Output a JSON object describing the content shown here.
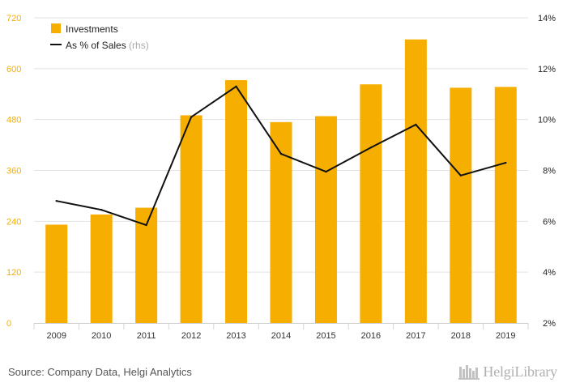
{
  "chart_data": {
    "type": "bar",
    "categories": [
      "2009",
      "2010",
      "2011",
      "2012",
      "2013",
      "2014",
      "2015",
      "2016",
      "2017",
      "2018",
      "2019"
    ],
    "series": [
      {
        "name": "Investments",
        "type": "bar",
        "axis": "left",
        "values": [
          232,
          256,
          272,
          490,
          573,
          474,
          488,
          563,
          669,
          555,
          557
        ]
      },
      {
        "name": "As % of Sales",
        "type": "line",
        "axis": "right",
        "values": [
          6.8,
          6.45,
          5.85,
          10.1,
          11.3,
          8.65,
          7.95,
          8.9,
          9.8,
          7.8,
          8.3
        ]
      }
    ],
    "left_axis": {
      "ticks": [
        "0",
        "120",
        "240",
        "360",
        "480",
        "600",
        "720"
      ],
      "min": 0,
      "max": 720
    },
    "right_axis": {
      "ticks": [
        "2%",
        "4%",
        "6%",
        "8%",
        "10%",
        "12%",
        "14%"
      ],
      "min": 2,
      "max": 14
    },
    "legend": {
      "items": [
        "Investments",
        "As % of Sales"
      ],
      "rhs_note": "(rhs)",
      "placement": "top-left"
    },
    "colors": {
      "bar": "#F6AE00",
      "line": "#111111",
      "left_tick": "#F6AE00",
      "right_tick": "#222222",
      "grid": "#e2e2e2"
    }
  },
  "footer": {
    "source": "Source: Company Data, Helgi Analytics",
    "logo_text": "HelgiLibrary"
  }
}
